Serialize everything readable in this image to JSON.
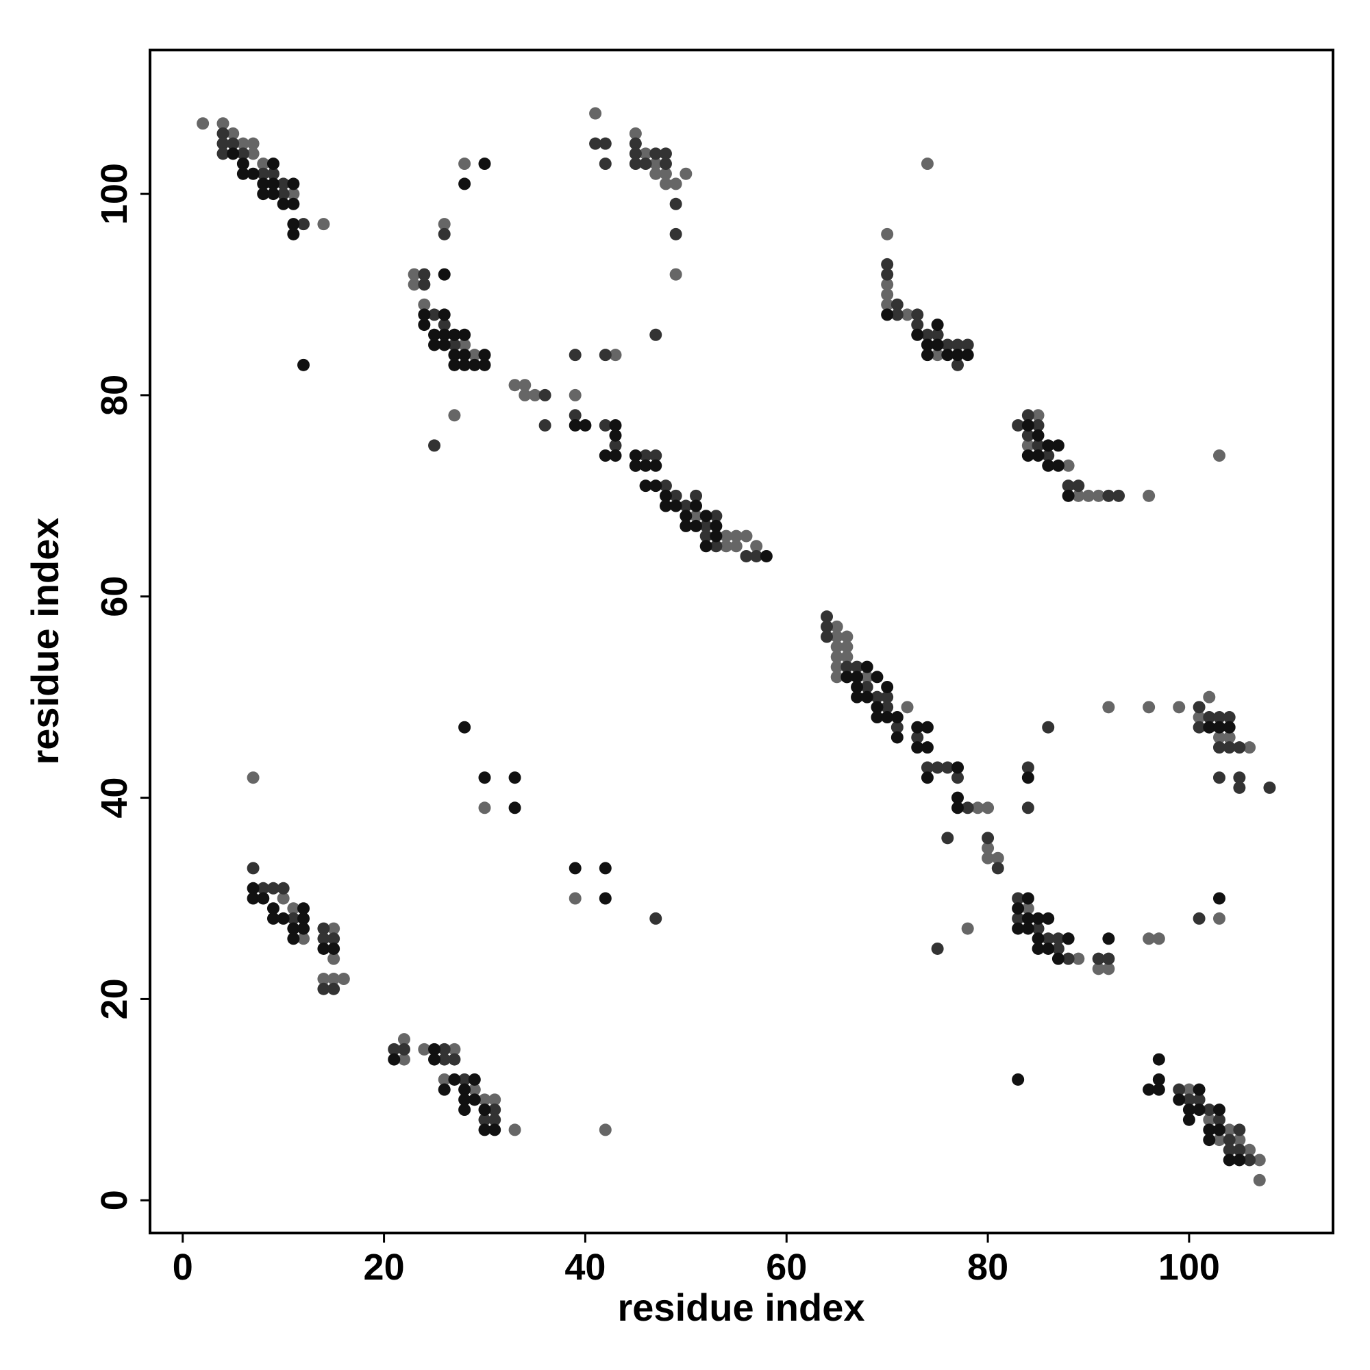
{
  "chart_data": {
    "type": "scatter",
    "xlabel": "residue index",
    "ylabel": "residue index",
    "xlim": [
      -3.25,
      114.3
    ],
    "ylim": [
      -3.25,
      114.3
    ],
    "xticks": [
      0,
      20,
      40,
      60,
      80,
      100
    ],
    "yticks": [
      0,
      20,
      40,
      60,
      80,
      100
    ],
    "series": [
      {
        "color": "#666666",
        "x": [
          2,
          4,
          5,
          6,
          7,
          7,
          8,
          11,
          14,
          23,
          23,
          24,
          26,
          28,
          27,
          28,
          29,
          33,
          34,
          35,
          34,
          39,
          43,
          54,
          55,
          56,
          57,
          55,
          54,
          51,
          41,
          45,
          46,
          47,
          48,
          49,
          50,
          47,
          48,
          49,
          70,
          70,
          70,
          70,
          74,
          72,
          74,
          75,
          77,
          88,
          89,
          90,
          91,
          96,
          103,
          85,
          84,
          65,
          65,
          65,
          65,
          65,
          66,
          66,
          66,
          65,
          68,
          72,
          79,
          80,
          80,
          80,
          81,
          77,
          78,
          92,
          96,
          99,
          101,
          102,
          102,
          103,
          104,
          106,
          103,
          84,
          88,
          89,
          91,
          92,
          96,
          97,
          7,
          10,
          11,
          12,
          15,
          15,
          15,
          16,
          14,
          22,
          22,
          24,
          26,
          27,
          29,
          30,
          31,
          33,
          42,
          30,
          39,
          100,
          102,
          104,
          105,
          106,
          107,
          107,
          103
        ],
        "y": [
          107,
          107,
          106,
          105,
          105,
          104,
          103,
          100,
          97,
          92,
          91,
          89,
          97,
          103,
          78,
          85,
          84,
          81,
          81,
          80,
          80,
          80,
          84,
          66,
          66,
          66,
          65,
          65,
          65,
          68,
          108,
          106,
          104,
          103,
          102,
          101,
          102,
          102,
          101,
          92,
          96,
          91,
          90,
          89,
          103,
          88,
          85,
          84,
          84,
          73,
          70,
          70,
          70,
          70,
          74,
          78,
          75,
          57,
          56,
          55,
          54,
          53,
          56,
          55,
          54,
          52,
          52,
          49,
          39,
          39,
          35,
          34,
          34,
          43,
          27,
          49,
          49,
          49,
          48,
          50,
          47,
          46,
          46,
          45,
          28,
          29,
          26,
          24,
          23,
          23,
          26,
          26,
          42,
          30,
          29,
          26,
          27,
          24,
          22,
          22,
          22,
          16,
          14,
          15,
          12,
          15,
          11,
          10,
          10,
          7,
          7,
          39,
          30,
          11,
          8,
          7,
          6,
          5,
          4,
          2,
          6
        ]
      },
      {
        "color": "#333333",
        "x": [
          4,
          4,
          4,
          5,
          6,
          8,
          9,
          10,
          10,
          12,
          24,
          24,
          26,
          25,
          26,
          27,
          25,
          36,
          36,
          39,
          39,
          42,
          43,
          45,
          46,
          47,
          48,
          49,
          50,
          51,
          52,
          53,
          52,
          53,
          56,
          57,
          47,
          42,
          41,
          42,
          42,
          45,
          45,
          45,
          46,
          47,
          48,
          48,
          49,
          49,
          70,
          70,
          71,
          71,
          73,
          74,
          75,
          76,
          77,
          78,
          77,
          73,
          83,
          84,
          84,
          85,
          85,
          86,
          88,
          89,
          92,
          93,
          64,
          64,
          64,
          66,
          66,
          67,
          68,
          69,
          70,
          70,
          71,
          73,
          74,
          75,
          76,
          77,
          78,
          81,
          76,
          80,
          75,
          86,
          84,
          84,
          101,
          101,
          102,
          103,
          103,
          104,
          104,
          105,
          105,
          105,
          103,
          108,
          101,
          83,
          83,
          85,
          86,
          87,
          87,
          88,
          91,
          92,
          7,
          8,
          9,
          10,
          11,
          14,
          14,
          14,
          15,
          15,
          21,
          22,
          26,
          26,
          27,
          28,
          30,
          31,
          31,
          47,
          99,
          100,
          101,
          102,
          103,
          104,
          105,
          105,
          106,
          104
        ],
        "y": [
          106,
          105,
          104,
          105,
          104,
          102,
          102,
          101,
          100,
          97,
          92,
          91,
          96,
          88,
          87,
          85,
          75,
          80,
          77,
          78,
          84,
          77,
          75,
          73,
          74,
          74,
          71,
          70,
          69,
          70,
          67,
          65,
          66,
          68,
          64,
          64,
          86,
          84,
          105,
          105,
          103,
          105,
          104,
          103,
          103,
          104,
          104,
          103,
          99,
          96,
          93,
          92,
          89,
          88,
          88,
          86,
          86,
          85,
          85,
          85,
          83,
          87,
          77,
          78,
          76,
          77,
          75,
          74,
          71,
          71,
          70,
          70,
          58,
          57,
          56,
          53,
          52,
          53,
          51,
          50,
          49,
          50,
          47,
          46,
          43,
          43,
          43,
          42,
          39,
          33,
          36,
          36,
          25,
          47,
          43,
          39,
          49,
          47,
          48,
          48,
          45,
          48,
          45,
          45,
          42,
          41,
          42,
          41,
          28,
          30,
          28,
          27,
          26,
          25,
          26,
          24,
          24,
          24,
          33,
          31,
          31,
          31,
          28,
          27,
          26,
          21,
          26,
          21,
          15,
          15,
          14,
          15,
          14,
          12,
          8,
          9,
          8,
          28,
          11,
          10,
          10,
          9,
          8,
          6,
          7,
          5,
          4,
          5
        ]
      },
      {
        "color": "#111111",
        "x": [
          5,
          6,
          6,
          7,
          8,
          8,
          9,
          9,
          9,
          10,
          11,
          11,
          11,
          11,
          24,
          24,
          25,
          25,
          26,
          26,
          26,
          27,
          27,
          27,
          28,
          28,
          28,
          29,
          30,
          30,
          26,
          28,
          30,
          12,
          39,
          40,
          42,
          43,
          43,
          43,
          45,
          46,
          45,
          46,
          47,
          47,
          48,
          48,
          49,
          50,
          50,
          51,
          51,
          52,
          53,
          53,
          52,
          58,
          70,
          73,
          74,
          74,
          75,
          75,
          76,
          77,
          78,
          84,
          84,
          85,
          85,
          86,
          86,
          87,
          87,
          88,
          66,
          67,
          67,
          67,
          68,
          68,
          69,
          69,
          69,
          70,
          70,
          71,
          71,
          73,
          73,
          74,
          74,
          74,
          77,
          77,
          77,
          84,
          102,
          103,
          104,
          103,
          83,
          83,
          84,
          84,
          84,
          85,
          85,
          85,
          86,
          86,
          87,
          88,
          92,
          83,
          7,
          7,
          8,
          9,
          9,
          10,
          11,
          11,
          12,
          12,
          12,
          14,
          15,
          21,
          25,
          25,
          26,
          27,
          28,
          28,
          28,
          29,
          29,
          30,
          30,
          31,
          30,
          33,
          33,
          28,
          39,
          42,
          42,
          96,
          97,
          97,
          97,
          99,
          100,
          100,
          101,
          101,
          102,
          102,
          103,
          103,
          104,
          105
        ],
        "y": [
          104,
          103,
          102,
          102,
          101,
          100,
          103,
          101,
          100,
          99,
          101,
          99,
          97,
          96,
          88,
          87,
          86,
          85,
          88,
          86,
          85,
          86,
          84,
          83,
          86,
          84,
          83,
          83,
          84,
          83,
          92,
          101,
          103,
          83,
          77,
          77,
          74,
          77,
          76,
          74,
          74,
          73,
          73,
          71,
          71,
          73,
          70,
          69,
          69,
          68,
          67,
          69,
          67,
          68,
          67,
          66,
          65,
          64,
          88,
          86,
          85,
          84,
          87,
          85,
          84,
          84,
          84,
          77,
          74,
          76,
          74,
          75,
          73,
          75,
          73,
          70,
          52,
          52,
          51,
          50,
          53,
          50,
          52,
          49,
          48,
          51,
          48,
          48,
          46,
          47,
          45,
          47,
          45,
          42,
          43,
          40,
          39,
          42,
          47,
          47,
          47,
          30,
          29,
          27,
          30,
          28,
          27,
          28,
          26,
          25,
          28,
          25,
          24,
          26,
          26,
          12,
          31,
          30,
          30,
          29,
          28,
          28,
          27,
          26,
          29,
          28,
          27,
          25,
          25,
          14,
          15,
          14,
          11,
          12,
          11,
          10,
          9,
          12,
          10,
          9,
          7,
          7,
          42,
          42,
          39,
          47,
          33,
          33,
          30,
          11,
          12,
          11,
          14,
          10,
          9,
          8,
          11,
          9,
          7,
          6,
          9,
          7,
          4,
          4
        ]
      }
    ]
  }
}
